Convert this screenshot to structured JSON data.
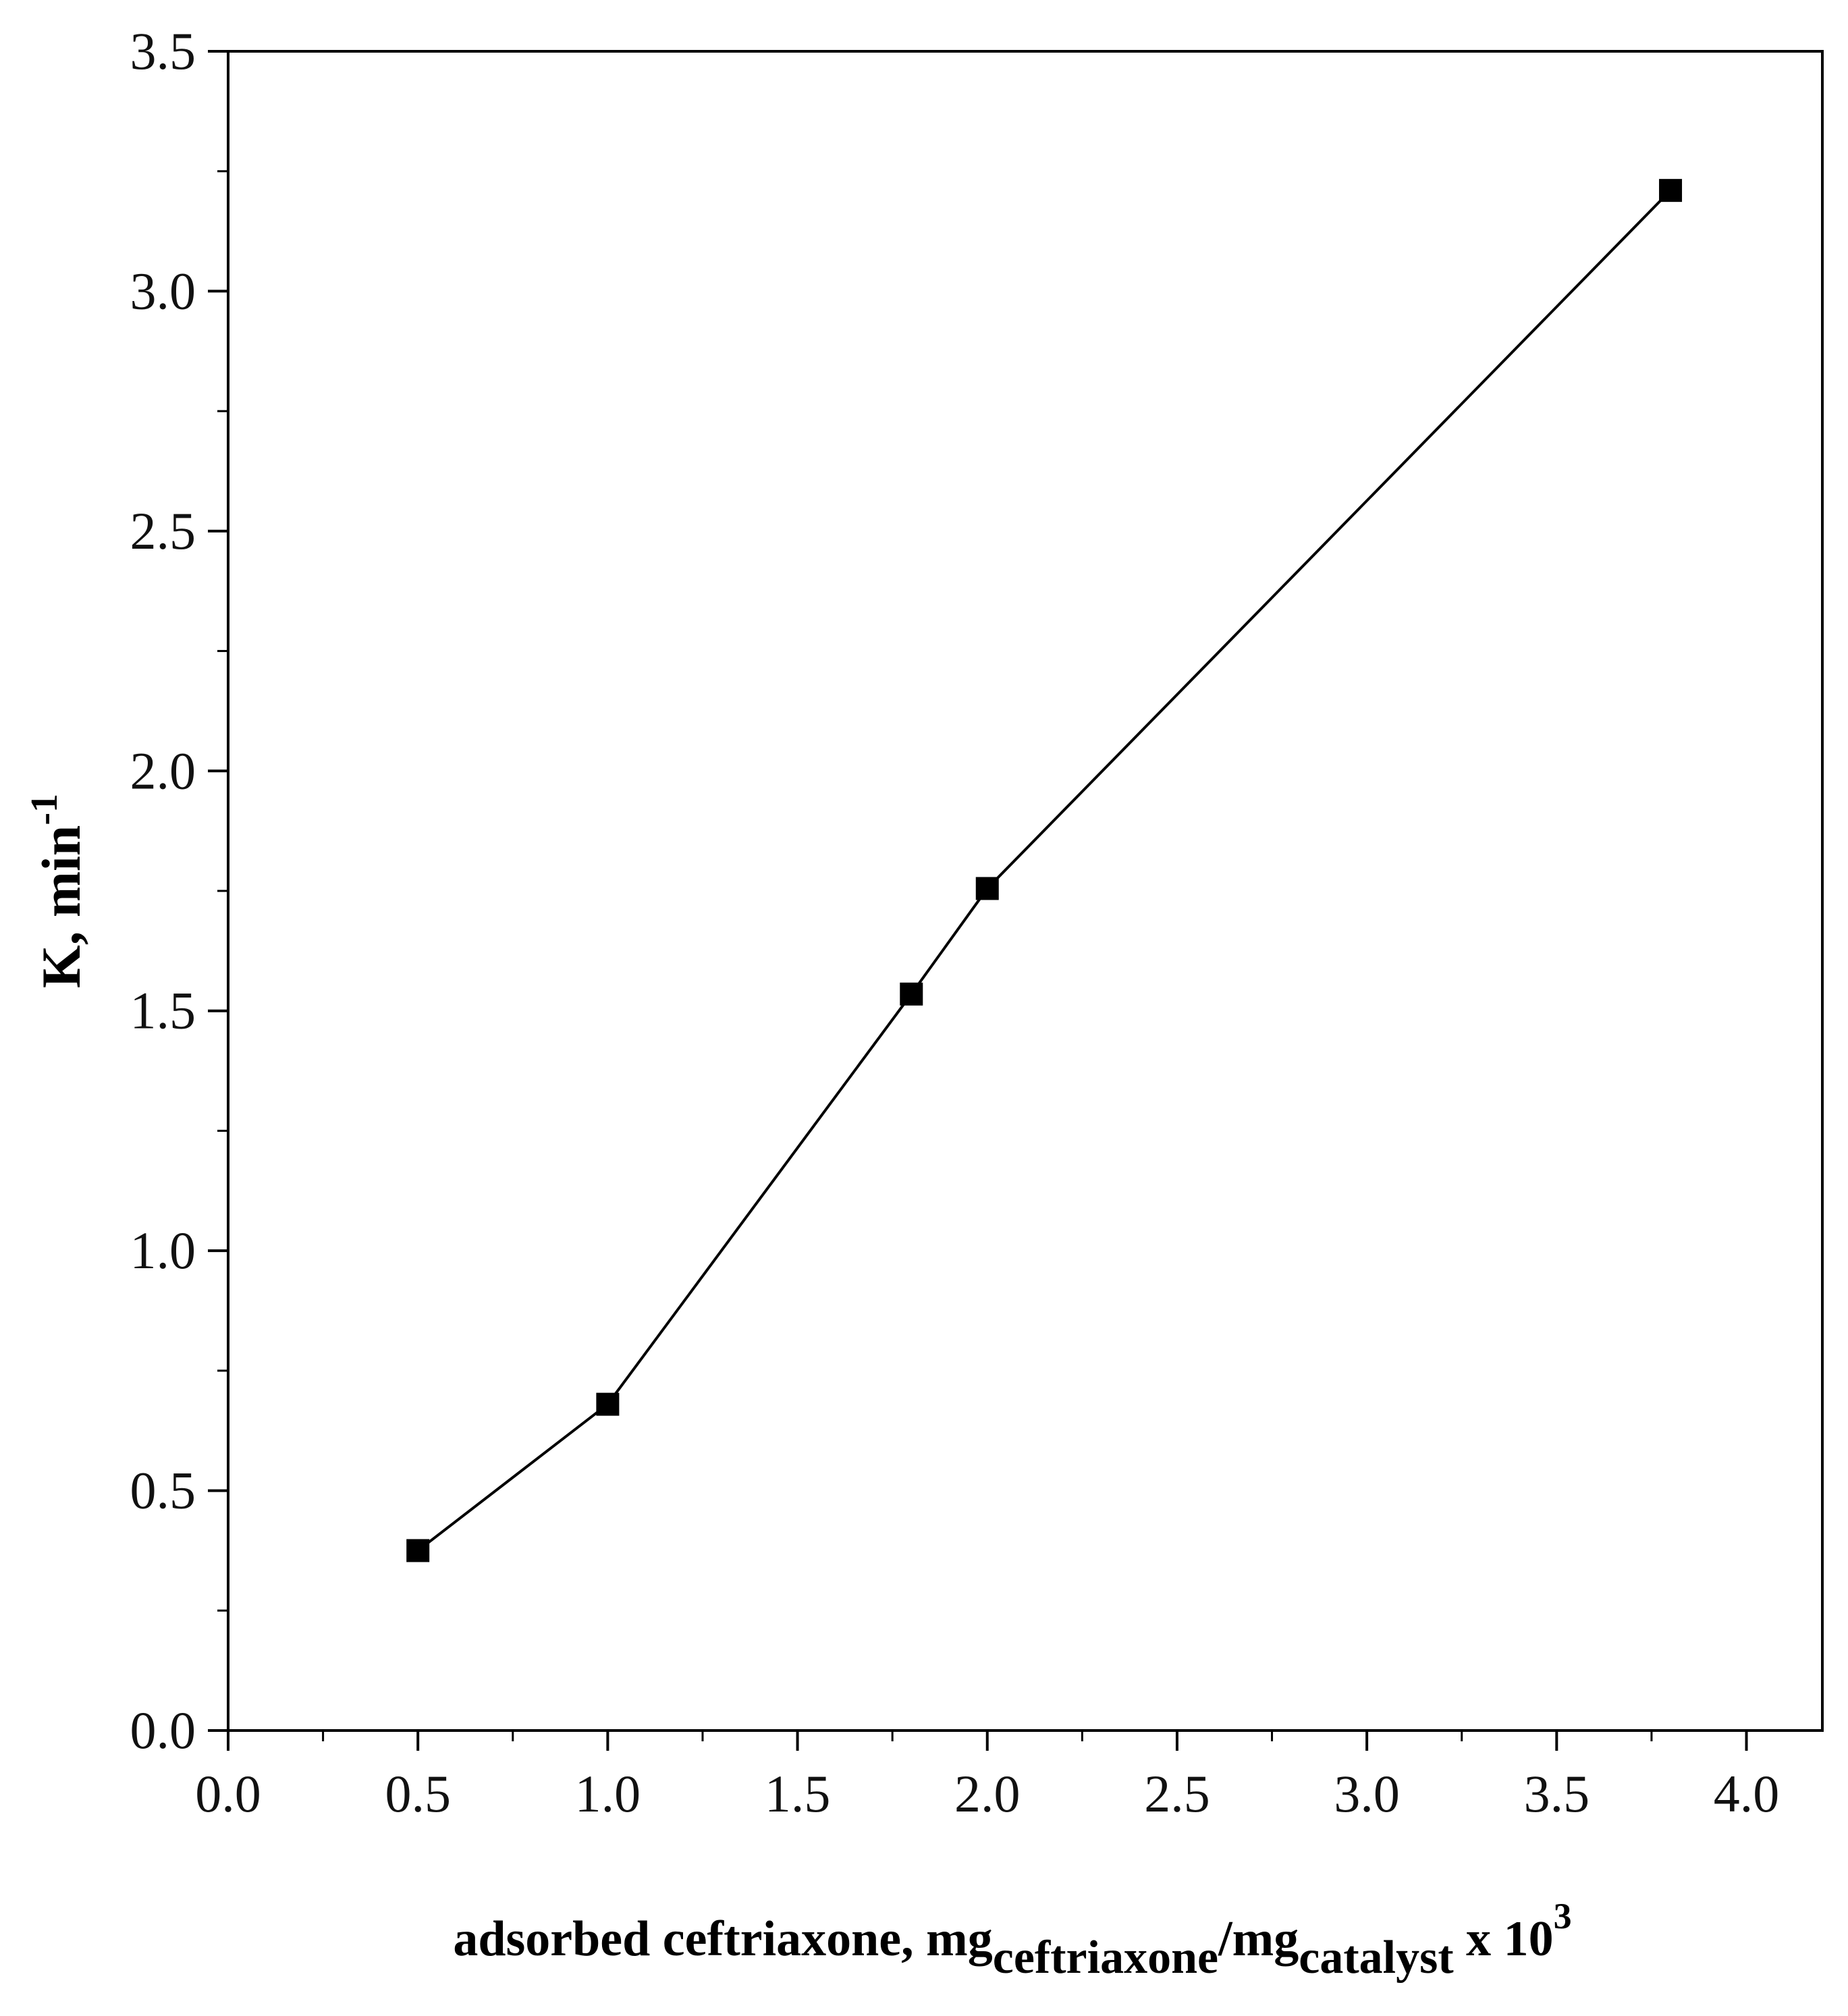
{
  "chart_data": {
    "type": "line",
    "title": "",
    "xlabel": {
      "main": "adsorbed ceftriaxone, mg",
      "sub1": "ceftriaxone",
      "mid": "/mg",
      "sub2": "catalyst",
      "tail": " x 10",
      "sup": "3"
    },
    "ylabel": {
      "main": "K, min",
      "sup": "-1"
    },
    "xlim": [
      0,
      4.2
    ],
    "ylim": [
      0,
      3.5
    ],
    "x_ticks": [
      "0.0",
      "0.5",
      "1.0",
      "1.5",
      "2.0",
      "2.5",
      "3.0",
      "3.5",
      "4.0"
    ],
    "y_ticks": [
      "0.0",
      "0.5",
      "1.0",
      "1.5",
      "2.0",
      "2.5",
      "3.0",
      "3.5"
    ],
    "grid": false,
    "legend": "none",
    "marker": "square",
    "color": "#000000",
    "x": [
      0.5,
      1.0,
      1.8,
      2.0,
      3.8
    ],
    "y": [
      0.375,
      0.68,
      1.535,
      1.755,
      3.21
    ]
  }
}
